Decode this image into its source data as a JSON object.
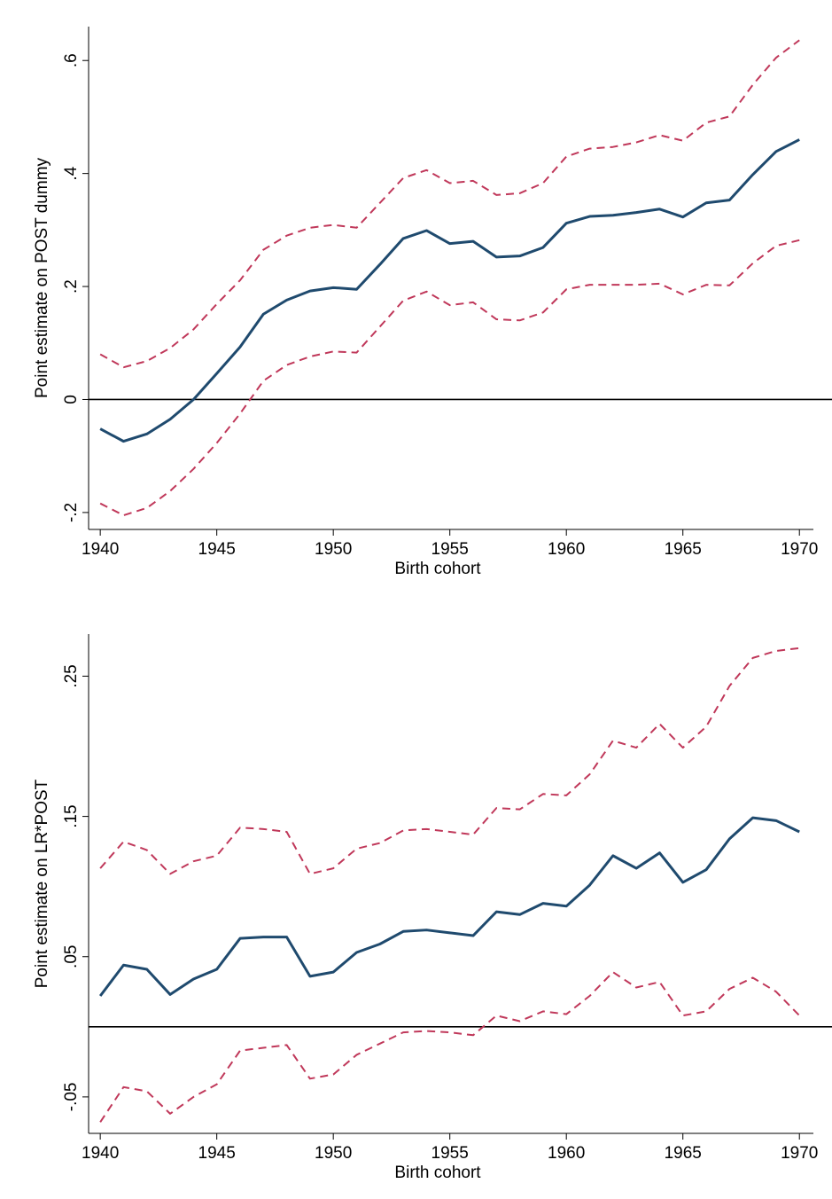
{
  "chart_data": [
    {
      "type": "line",
      "y_label": "Point estimate on POST dummy",
      "x_label": "Birth cohort",
      "x": [
        1940,
        1941,
        1942,
        1943,
        1944,
        1945,
        1946,
        1947,
        1948,
        1949,
        1950,
        1951,
        1952,
        1953,
        1954,
        1955,
        1956,
        1957,
        1958,
        1959,
        1960,
        1961,
        1962,
        1963,
        1964,
        1965,
        1966,
        1967,
        1968,
        1969,
        1970
      ],
      "xlim": [
        1939.5,
        1970.6
      ],
      "xticks": [
        1940,
        1945,
        1950,
        1955,
        1960,
        1965,
        1970
      ],
      "ylim": [
        -0.23,
        0.66
      ],
      "yticks": [
        {
          "value": -0.2,
          "label": "-.2"
        },
        0,
        {
          "value": 0.2,
          "label": ".2"
        },
        {
          "value": 0.4,
          "label": ".4"
        },
        {
          "value": 0.6,
          "label": ".6"
        }
      ],
      "hline": 0,
      "series": [
        {
          "color": "#c0385a",
          "dashed": true,
          "values": [
            0.08,
            0.057,
            0.068,
            0.091,
            0.124,
            0.169,
            0.211,
            0.265,
            0.29,
            0.304,
            0.309,
            0.304,
            0.348,
            0.392,
            0.406,
            0.383,
            0.387,
            0.362,
            0.365,
            0.383,
            0.43,
            0.444,
            0.447,
            0.455,
            0.468,
            0.458,
            0.49,
            0.501,
            0.557,
            0.605,
            0.636
          ]
        },
        {
          "color": "#c0385a",
          "dashed": true,
          "values": [
            -0.184,
            -0.205,
            -0.192,
            -0.162,
            -0.123,
            -0.077,
            -0.025,
            0.033,
            0.061,
            0.076,
            0.085,
            0.083,
            0.129,
            0.175,
            0.191,
            0.167,
            0.172,
            0.142,
            0.14,
            0.154,
            0.195,
            0.203,
            0.203,
            0.203,
            0.205,
            0.186,
            0.203,
            0.202,
            0.241,
            0.272,
            0.282
          ]
        },
        {
          "color": "#1f4a6e",
          "dashed": false,
          "values": [
            -0.052,
            -0.074,
            -0.061,
            -0.035,
            0.0,
            0.046,
            0.093,
            0.151,
            0.176,
            0.192,
            0.198,
            0.195,
            0.239,
            0.285,
            0.299,
            0.276,
            0.28,
            0.252,
            0.254,
            0.269,
            0.312,
            0.324,
            0.326,
            0.331,
            0.337,
            0.323,
            0.348,
            0.353,
            0.398,
            0.439,
            0.46
          ]
        }
      ]
    },
    {
      "type": "line",
      "y_label": "Point estimate on LR*POST",
      "x_label": "Birth cohort",
      "x": [
        1940,
        1941,
        1942,
        1943,
        1944,
        1945,
        1946,
        1947,
        1948,
        1949,
        1950,
        1951,
        1952,
        1953,
        1954,
        1955,
        1956,
        1957,
        1958,
        1959,
        1960,
        1961,
        1962,
        1963,
        1964,
        1965,
        1966,
        1967,
        1968,
        1969,
        1970
      ],
      "xlim": [
        1939.5,
        1970.6
      ],
      "xticks": [
        1940,
        1945,
        1950,
        1955,
        1960,
        1965,
        1970
      ],
      "ylim": [
        -0.076,
        0.28
      ],
      "yticks": [
        {
          "value": -0.05,
          "label": "-.05"
        },
        {
          "value": 0.05,
          "label": ".05"
        },
        {
          "value": 0.15,
          "label": ".15"
        },
        {
          "value": 0.25,
          "label": ".25"
        }
      ],
      "hline": 0,
      "series": [
        {
          "color": "#c0385a",
          "dashed": true,
          "values": [
            0.113,
            0.132,
            0.126,
            0.109,
            0.118,
            0.122,
            0.142,
            0.141,
            0.139,
            0.109,
            0.113,
            0.127,
            0.131,
            0.14,
            0.141,
            0.139,
            0.137,
            0.156,
            0.155,
            0.166,
            0.165,
            0.18,
            0.204,
            0.199,
            0.216,
            0.199,
            0.214,
            0.243,
            0.263,
            0.268,
            0.27
          ]
        },
        {
          "color": "#c0385a",
          "dashed": true,
          "values": [
            -0.068,
            -0.043,
            -0.046,
            -0.062,
            -0.05,
            -0.041,
            -0.017,
            -0.015,
            -0.013,
            -0.037,
            -0.034,
            -0.02,
            -0.012,
            -0.004,
            -0.003,
            -0.004,
            -0.006,
            0.008,
            0.004,
            0.011,
            0.009,
            0.022,
            0.039,
            0.028,
            0.032,
            0.008,
            0.011,
            0.027,
            0.035,
            0.025,
            0.008
          ]
        },
        {
          "color": "#1f4a6e",
          "dashed": false,
          "values": [
            0.022,
            0.044,
            0.041,
            0.023,
            0.034,
            0.041,
            0.063,
            0.064,
            0.064,
            0.036,
            0.039,
            0.053,
            0.059,
            0.068,
            0.069,
            0.067,
            0.065,
            0.082,
            0.08,
            0.088,
            0.086,
            0.101,
            0.122,
            0.113,
            0.124,
            0.103,
            0.112,
            0.134,
            0.149,
            0.147,
            0.139
          ]
        }
      ]
    }
  ]
}
